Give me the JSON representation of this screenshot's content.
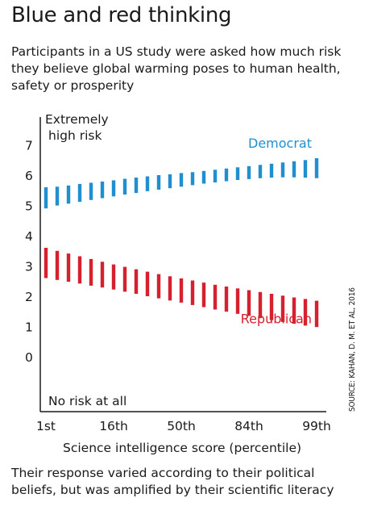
{
  "header": {
    "title": "Blue and red thinking",
    "subtitle": "Participants in a US study were asked how much risk they believe global warming poses to human health, safety or prosperity"
  },
  "footer": {
    "note": "Their response varied according to their political beliefs, but was amplified by their scientific literacy",
    "source": "SOURCE: KAHAN, D. M. ET AL, 2016"
  },
  "colors": {
    "democrat": "#1f8fcf",
    "republican": "#d7202e",
    "axis": "#1a1a1a"
  },
  "chart_data": {
    "type": "bar",
    "xlabel": "Science intelligence score (percentile)",
    "ylabel": "",
    "y_top_label": [
      "Extremely",
      "high risk"
    ],
    "y_bottom_label": "No risk at all",
    "ylim": [
      0,
      7
    ],
    "y_ticks": [
      0,
      1,
      2,
      3,
      4,
      5,
      6,
      7
    ],
    "x_tick_labels": [
      "1st",
      "16th",
      "50th",
      "84th",
      "99th"
    ],
    "x_tick_positions": [
      0,
      6,
      12,
      18,
      24
    ],
    "x_range": [
      0,
      24
    ],
    "series": [
      {
        "name": "Democrat",
        "color": "#1f8fcf",
        "low": [
          4.9,
          5.0,
          5.06,
          5.12,
          5.18,
          5.24,
          5.3,
          5.36,
          5.41,
          5.47,
          5.52,
          5.57,
          5.62,
          5.67,
          5.72,
          5.76,
          5.8,
          5.84,
          5.87,
          5.9,
          5.92,
          5.93,
          5.93,
          5.92,
          5.9
        ],
        "high": [
          5.6,
          5.62,
          5.66,
          5.71,
          5.75,
          5.79,
          5.83,
          5.88,
          5.92,
          5.96,
          6.0,
          6.03,
          6.07,
          6.1,
          6.14,
          6.18,
          6.22,
          6.26,
          6.3,
          6.34,
          6.38,
          6.42,
          6.46,
          6.5,
          6.56
        ]
      },
      {
        "name": "Republican",
        "color": "#d7202e",
        "low": [
          2.6,
          2.54,
          2.48,
          2.42,
          2.35,
          2.29,
          2.22,
          2.15,
          2.08,
          2.0,
          1.93,
          1.86,
          1.79,
          1.71,
          1.64,
          1.56,
          1.49,
          1.42,
          1.35,
          1.28,
          1.21,
          1.15,
          1.09,
          1.03,
          0.98
        ],
        "high": [
          3.6,
          3.5,
          3.41,
          3.32,
          3.23,
          3.14,
          3.05,
          2.97,
          2.89,
          2.81,
          2.73,
          2.66,
          2.59,
          2.52,
          2.45,
          2.38,
          2.32,
          2.26,
          2.2,
          2.14,
          2.08,
          2.02,
          1.96,
          1.91,
          1.85
        ]
      }
    ]
  }
}
